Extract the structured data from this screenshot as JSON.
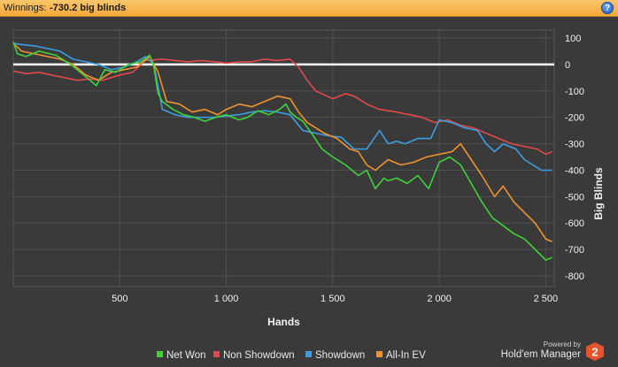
{
  "header": {
    "label": "Winnings:",
    "value": "-730.2 big blinds",
    "help_glyph": "?"
  },
  "branding": {
    "powered": "Powered by",
    "name": "Hold'em Manager",
    "logo_number": "2"
  },
  "chart_data": {
    "type": "line",
    "xlabel": "Hands",
    "ylabel": "Big Blinds",
    "xlim": [
      0,
      2540
    ],
    "ylim": [
      -840,
      130
    ],
    "xticks": [
      500,
      1000,
      1500,
      2000,
      2500
    ],
    "xtick_labels": [
      "500",
      "1 000",
      "1 500",
      "2 000",
      "2 500"
    ],
    "yticks": [
      100,
      0,
      -100,
      -200,
      -300,
      -400,
      -500,
      -600,
      -700,
      -800
    ],
    "ytick_labels": [
      "100",
      "0",
      "-100",
      "-200",
      "-300",
      "-400",
      "-500",
      "-600",
      "-700",
      "-800"
    ],
    "grid": true,
    "legend_position": "bottom",
    "zero_line": true,
    "series": [
      {
        "name": "Net Won",
        "color": "#3fd23a",
        "x": [
          0,
          20,
          60,
          120,
          200,
          270,
          330,
          390,
          430,
          480,
          540,
          600,
          640,
          660,
          680,
          700,
          750,
          800,
          850,
          900,
          950,
          1000,
          1060,
          1100,
          1150,
          1200,
          1250,
          1280,
          1300,
          1330,
          1360,
          1400,
          1450,
          1500,
          1560,
          1620,
          1660,
          1700,
          1740,
          1760,
          1800,
          1850,
          1900,
          1950,
          2000,
          2050,
          2100,
          2150,
          2200,
          2250,
          2300,
          2350,
          2400,
          2450,
          2500,
          2530
        ],
        "y": [
          85,
          40,
          30,
          50,
          35,
          0,
          -40,
          -80,
          -20,
          -30,
          0,
          10,
          35,
          -10,
          -110,
          -140,
          -170,
          -190,
          -200,
          -215,
          -200,
          -190,
          -210,
          -200,
          -175,
          -190,
          -170,
          -150,
          -180,
          -200,
          -215,
          -260,
          -320,
          -350,
          -380,
          -420,
          -400,
          -470,
          -430,
          -440,
          -430,
          -450,
          -420,
          -470,
          -370,
          -350,
          -380,
          -450,
          -520,
          -580,
          -610,
          -640,
          -660,
          -700,
          -740,
          -730
        ]
      },
      {
        "name": "Non Showdown",
        "color": "#e24a4a",
        "x": [
          0,
          60,
          120,
          180,
          240,
          300,
          360,
          420,
          500,
          560,
          620,
          700,
          760,
          820,
          880,
          950,
          1000,
          1060,
          1120,
          1180,
          1240,
          1300,
          1340,
          1380,
          1420,
          1500,
          1560,
          1600,
          1660,
          1720,
          1800,
          1860,
          1920,
          1980,
          2040,
          2100,
          2160,
          2220,
          2280,
          2340,
          2400,
          2460,
          2500,
          2530
        ],
        "y": [
          -25,
          -35,
          -30,
          -40,
          -50,
          -60,
          -55,
          -60,
          -40,
          -30,
          15,
          20,
          15,
          10,
          15,
          10,
          5,
          10,
          10,
          20,
          15,
          20,
          -10,
          -60,
          -100,
          -130,
          -110,
          -120,
          -150,
          -170,
          -180,
          -190,
          -200,
          -220,
          -210,
          -230,
          -240,
          -260,
          -280,
          -300,
          -310,
          -320,
          -340,
          -330
        ]
      },
      {
        "name": "Showdown",
        "color": "#3b9ee4",
        "x": [
          0,
          40,
          100,
          160,
          220,
          280,
          340,
          400,
          460,
          520,
          580,
          620,
          660,
          700,
          760,
          820,
          880,
          940,
          1000,
          1060,
          1120,
          1180,
          1240,
          1300,
          1360,
          1420,
          1480,
          1540,
          1600,
          1660,
          1720,
          1760,
          1800,
          1840,
          1900,
          1960,
          2000,
          2060,
          2120,
          2180,
          2220,
          2260,
          2300,
          2360,
          2400,
          2440,
          2480,
          2530
        ],
        "y": [
          80,
          75,
          70,
          60,
          50,
          20,
          10,
          0,
          -20,
          -10,
          10,
          30,
          0,
          -170,
          -190,
          -200,
          -200,
          -200,
          -195,
          -190,
          -180,
          -175,
          -180,
          -190,
          -250,
          -260,
          -270,
          -275,
          -320,
          -320,
          -250,
          -300,
          -290,
          -300,
          -280,
          -280,
          -210,
          -220,
          -240,
          -250,
          -300,
          -330,
          -300,
          -320,
          -360,
          -380,
          -400,
          -400
        ]
      },
      {
        "name": "All-In EV",
        "color": "#f0922e",
        "x": [
          0,
          40,
          100,
          160,
          220,
          280,
          340,
          400,
          460,
          520,
          580,
          640,
          680,
          720,
          780,
          840,
          900,
          960,
          1000,
          1060,
          1120,
          1180,
          1240,
          1300,
          1340,
          1380,
          1420,
          1460,
          1520,
          1580,
          1620,
          1660,
          1700,
          1760,
          1820,
          1880,
          1940,
          2000,
          2060,
          2100,
          2150,
          2200,
          2260,
          2300,
          2350,
          2400,
          2450,
          2500,
          2530
        ],
        "y": [
          80,
          50,
          40,
          30,
          20,
          0,
          -40,
          -60,
          -30,
          -20,
          -10,
          30,
          -30,
          -140,
          -150,
          -180,
          -170,
          -190,
          -170,
          -150,
          -160,
          -140,
          -120,
          -130,
          -180,
          -220,
          -240,
          -260,
          -280,
          -320,
          -330,
          -380,
          -400,
          -360,
          -380,
          -370,
          -350,
          -340,
          -330,
          -300,
          -360,
          -420,
          -500,
          -460,
          -520,
          -560,
          -600,
          -660,
          -670
        ]
      }
    ]
  }
}
